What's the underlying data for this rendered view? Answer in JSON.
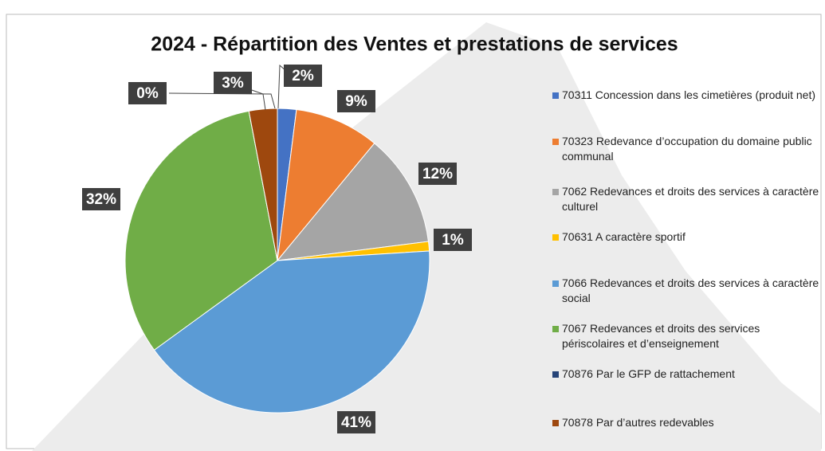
{
  "chart_data": {
    "type": "pie",
    "title": "2024 - Répartition des Ventes et prestations de services",
    "categories": [
      "70311 Concession dans les cimetières (produit net)",
      "70323 Redevance d’occupation du domaine public communal",
      "7062 Redevances et droits des services à caractère culturel",
      "70631 A caractère sportif",
      "7066 Redevances et droits des services à caractère social",
      "7067 Redevances et droits des services périscolaires et d’enseignement",
      "70876 Par le GFP de rattachement",
      "70878 Par d’autres redevables"
    ],
    "values": [
      2,
      9,
      12,
      1,
      41,
      32,
      0,
      3
    ],
    "value_labels": [
      "2%",
      "9%",
      "12%",
      "1%",
      "41%",
      "32%",
      "0%",
      "3%"
    ],
    "colors": [
      "#4472c4",
      "#ed7d31",
      "#a5a5a5",
      "#ffc000",
      "#5b9bd5",
      "#70ad47",
      "#264478",
      "#9e480e"
    ],
    "legend": "right"
  }
}
